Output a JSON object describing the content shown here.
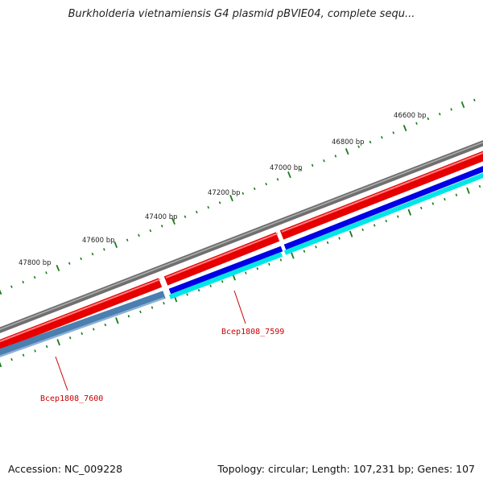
{
  "title": "Burkholderia vietnamiensis G4 plasmid pBVIE04, complete sequ...",
  "footer": {
    "accession": "Accession: NC_009228",
    "summary": "Topology: circular; Length: 107,231 bp; Genes: 107"
  },
  "colors": {
    "backbone": "#7a7a7a",
    "cds_forward": "#e60000",
    "cds_reverse_blue": "#0000e6",
    "cds_reverse_cyan": "#00e6e6",
    "cds_reverse_steel": "#4a7fb0",
    "ticks": "#1a7a1a",
    "gene_label": "#cc0000"
  },
  "scale_labels": [
    "46600 bp",
    "46800 bp",
    "47000 bp",
    "47200 bp",
    "47400 bp",
    "47600 bp",
    "47800 bp"
  ],
  "gene_labels": [
    "Bcep1808_7599",
    "Bcep1808_7600"
  ]
}
